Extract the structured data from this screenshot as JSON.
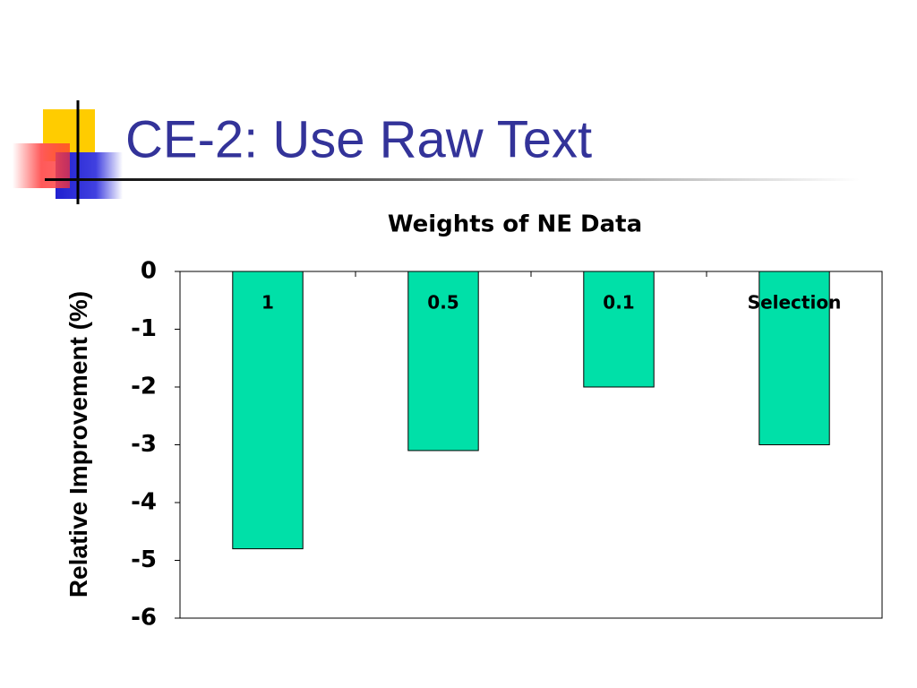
{
  "slide": {
    "title": "CE-2: Use Raw Text"
  },
  "chart_data": {
    "type": "bar",
    "title": "Weights of NE Data",
    "y_label": "Relative Improvement (%)",
    "categories": [
      "1",
      "0.5",
      "0.1",
      "Selection"
    ],
    "values": [
      -4.8,
      -3.1,
      -2.0,
      -3.0
    ],
    "color": "#00e0a8",
    "ylim": [
      -6,
      0
    ],
    "yticks": [
      0,
      -1,
      -2,
      -3,
      -4,
      -5,
      -6
    ],
    "grid": false
  }
}
